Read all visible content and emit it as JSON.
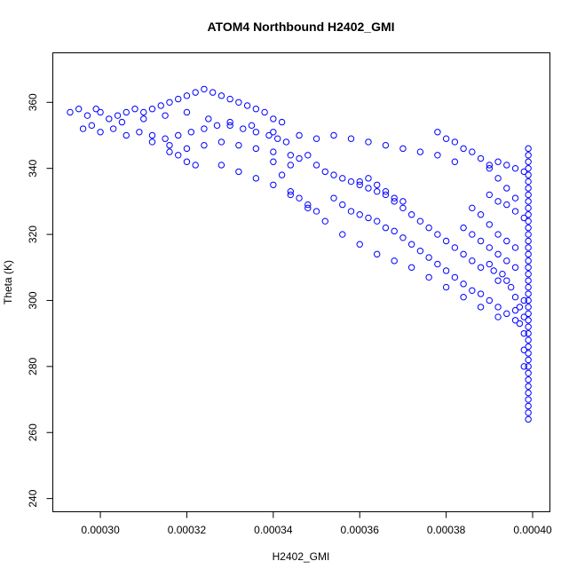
{
  "chart_data": {
    "type": "scatter",
    "title": "ATOM4 Northbound H2402_GMI",
    "xlabel": "H2402_GMI",
    "ylabel": "Theta (K)",
    "xlim": [
      0.000289,
      0.000404
    ],
    "ylim": [
      236,
      375
    ],
    "x_ticks": [
      0.0003,
      0.00032,
      0.00034,
      0.00036,
      0.00038,
      0.0004
    ],
    "x_tick_labels": [
      "0.00030",
      "0.00032",
      "0.00034",
      "0.00036",
      "0.00038",
      "0.00040"
    ],
    "y_ticks": [
      240,
      260,
      280,
      300,
      320,
      340,
      360
    ],
    "y_tick_labels": [
      "240",
      "260",
      "280",
      "300",
      "320",
      "340",
      "360"
    ],
    "grid": false,
    "legend": "none",
    "marker": "open-circle",
    "color": "#0000ff",
    "series": [
      {
        "points": [
          [
            0.000293,
            357
          ],
          [
            0.000295,
            358
          ],
          [
            0.000297,
            356
          ],
          [
            0.000299,
            358
          ],
          [
            0.0003,
            357
          ],
          [
            0.000302,
            355
          ],
          [
            0.000304,
            356
          ],
          [
            0.000306,
            357
          ],
          [
            0.000308,
            358
          ],
          [
            0.00031,
            357
          ],
          [
            0.000312,
            358
          ],
          [
            0.000314,
            359
          ],
          [
            0.000316,
            360
          ],
          [
            0.000318,
            361
          ],
          [
            0.00032,
            362
          ],
          [
            0.000322,
            363
          ],
          [
            0.000324,
            364
          ],
          [
            0.000326,
            363
          ],
          [
            0.000328,
            362
          ],
          [
            0.00033,
            361
          ],
          [
            0.000332,
            360
          ],
          [
            0.000334,
            359
          ],
          [
            0.000336,
            358
          ],
          [
            0.000338,
            357
          ],
          [
            0.00034,
            355
          ],
          [
            0.000342,
            354
          ],
          [
            0.000296,
            352
          ],
          [
            0.000298,
            353
          ],
          [
            0.0003,
            351
          ],
          [
            0.000303,
            352
          ],
          [
            0.000306,
            350
          ],
          [
            0.000309,
            351
          ],
          [
            0.000312,
            350
          ],
          [
            0.000315,
            349
          ],
          [
            0.000318,
            350
          ],
          [
            0.000321,
            351
          ],
          [
            0.000324,
            352
          ],
          [
            0.000327,
            353
          ],
          [
            0.00033,
            353
          ],
          [
            0.000333,
            352
          ],
          [
            0.000336,
            351
          ],
          [
            0.000339,
            350
          ],
          [
            0.000341,
            349
          ],
          [
            0.000343,
            348
          ],
          [
            0.000305,
            354
          ],
          [
            0.00031,
            355
          ],
          [
            0.000315,
            356
          ],
          [
            0.00032,
            357
          ],
          [
            0.000325,
            355
          ],
          [
            0.00033,
            354
          ],
          [
            0.000335,
            353
          ],
          [
            0.00034,
            351
          ],
          [
            0.000312,
            348
          ],
          [
            0.000316,
            347
          ],
          [
            0.00032,
            346
          ],
          [
            0.000324,
            347
          ],
          [
            0.000328,
            348
          ],
          [
            0.000332,
            347
          ],
          [
            0.000336,
            346
          ],
          [
            0.00034,
            345
          ],
          [
            0.000344,
            344
          ],
          [
            0.000318,
            344
          ],
          [
            0.00032,
            342
          ],
          [
            0.000322,
            341
          ],
          [
            0.000316,
            345
          ],
          [
            0.000342,
            338
          ],
          [
            0.000344,
            341
          ],
          [
            0.000346,
            343
          ],
          [
            0.000348,
            344
          ],
          [
            0.00035,
            341
          ],
          [
            0.000352,
            339
          ],
          [
            0.000354,
            338
          ],
          [
            0.000356,
            337
          ],
          [
            0.000358,
            336
          ],
          [
            0.00036,
            335
          ],
          [
            0.000362,
            334
          ],
          [
            0.000364,
            333
          ],
          [
            0.000366,
            332
          ],
          [
            0.000368,
            331
          ],
          [
            0.00037,
            330
          ],
          [
            0.000346,
            350
          ],
          [
            0.00035,
            349
          ],
          [
            0.000354,
            350
          ],
          [
            0.000358,
            349
          ],
          [
            0.000362,
            348
          ],
          [
            0.000366,
            347
          ],
          [
            0.00037,
            346
          ],
          [
            0.000374,
            345
          ],
          [
            0.000378,
            344
          ],
          [
            0.000382,
            342
          ],
          [
            0.00034,
            342
          ],
          [
            0.000344,
            333
          ],
          [
            0.000346,
            331
          ],
          [
            0.000348,
            329
          ],
          [
            0.00035,
            327
          ],
          [
            0.000354,
            331
          ],
          [
            0.000356,
            329
          ],
          [
            0.000358,
            327
          ],
          [
            0.00036,
            326
          ],
          [
            0.000362,
            325
          ],
          [
            0.000364,
            324
          ],
          [
            0.000366,
            322
          ],
          [
            0.000368,
            321
          ],
          [
            0.00037,
            319
          ],
          [
            0.000372,
            317
          ],
          [
            0.000374,
            315
          ],
          [
            0.000376,
            313
          ],
          [
            0.000378,
            311
          ],
          [
            0.00038,
            309
          ],
          [
            0.000382,
            307
          ],
          [
            0.000328,
            341
          ],
          [
            0.000332,
            339
          ],
          [
            0.000336,
            337
          ],
          [
            0.00034,
            335
          ],
          [
            0.000344,
            332
          ],
          [
            0.000348,
            328
          ],
          [
            0.000352,
            324
          ],
          [
            0.000356,
            320
          ],
          [
            0.00036,
            317
          ],
          [
            0.000364,
            314
          ],
          [
            0.000368,
            312
          ],
          [
            0.000372,
            310
          ],
          [
            0.000376,
            307
          ],
          [
            0.00038,
            304
          ],
          [
            0.000384,
            301
          ],
          [
            0.000388,
            298
          ],
          [
            0.000392,
            295
          ],
          [
            0.00036,
            336
          ],
          [
            0.000362,
            337
          ],
          [
            0.000364,
            335
          ],
          [
            0.000366,
            333
          ],
          [
            0.000368,
            330
          ],
          [
            0.00037,
            328
          ],
          [
            0.000372,
            326
          ],
          [
            0.000374,
            324
          ],
          [
            0.000376,
            322
          ],
          [
            0.000378,
            320
          ],
          [
            0.00038,
            318
          ],
          [
            0.000382,
            316
          ],
          [
            0.000384,
            314
          ],
          [
            0.000386,
            312
          ],
          [
            0.000388,
            310
          ],
          [
            0.000378,
            351
          ],
          [
            0.00038,
            349
          ],
          [
            0.000382,
            348
          ],
          [
            0.000384,
            346
          ],
          [
            0.000386,
            345
          ],
          [
            0.000388,
            343
          ],
          [
            0.00039,
            340
          ],
          [
            0.000392,
            337
          ],
          [
            0.000394,
            334
          ],
          [
            0.000396,
            331
          ],
          [
            0.000386,
            328
          ],
          [
            0.000388,
            326
          ],
          [
            0.00039,
            323
          ],
          [
            0.000392,
            320
          ],
          [
            0.000394,
            318
          ],
          [
            0.000396,
            316
          ],
          [
            0.000384,
            322
          ],
          [
            0.000386,
            320
          ],
          [
            0.000388,
            318
          ],
          [
            0.00039,
            316
          ],
          [
            0.000392,
            314
          ],
          [
            0.000394,
            312
          ],
          [
            0.000396,
            310
          ],
          [
            0.000384,
            305
          ],
          [
            0.000386,
            303
          ],
          [
            0.000388,
            302
          ],
          [
            0.00039,
            300
          ],
          [
            0.000392,
            298
          ],
          [
            0.000394,
            296
          ],
          [
            0.000396,
            294
          ],
          [
            0.00039,
            341
          ],
          [
            0.000392,
            342
          ],
          [
            0.000394,
            341
          ],
          [
            0.000396,
            340
          ],
          [
            0.000398,
            339
          ],
          [
            0.00039,
            332
          ],
          [
            0.000392,
            330
          ],
          [
            0.000394,
            329
          ],
          [
            0.000396,
            327
          ],
          [
            0.000398,
            325
          ],
          [
            0.000399,
            346
          ],
          [
            0.000399,
            344
          ],
          [
            0.000399,
            342
          ],
          [
            0.000399,
            340
          ],
          [
            0.000399,
            338
          ],
          [
            0.000399,
            336
          ],
          [
            0.000399,
            334
          ],
          [
            0.000399,
            332
          ],
          [
            0.000399,
            330
          ],
          [
            0.000399,
            328
          ],
          [
            0.000399,
            326
          ],
          [
            0.000399,
            324
          ],
          [
            0.000399,
            322
          ],
          [
            0.000399,
            320
          ],
          [
            0.000399,
            318
          ],
          [
            0.000399,
            316
          ],
          [
            0.000399,
            314
          ],
          [
            0.000399,
            312
          ],
          [
            0.000399,
            310
          ],
          [
            0.000399,
            308
          ],
          [
            0.000399,
            306
          ],
          [
            0.000399,
            304
          ],
          [
            0.000399,
            302
          ],
          [
            0.000399,
            300
          ],
          [
            0.000399,
            298
          ],
          [
            0.000399,
            296
          ],
          [
            0.000399,
            294
          ],
          [
            0.000399,
            292
          ],
          [
            0.000399,
            290
          ],
          [
            0.000399,
            288
          ],
          [
            0.000399,
            286
          ],
          [
            0.000399,
            284
          ],
          [
            0.000399,
            282
          ],
          [
            0.000399,
            280
          ],
          [
            0.000399,
            278
          ],
          [
            0.000399,
            276
          ],
          [
            0.000399,
            274
          ],
          [
            0.000399,
            272
          ],
          [
            0.000399,
            270
          ],
          [
            0.000399,
            268
          ],
          [
            0.000399,
            266
          ],
          [
            0.000399,
            264
          ],
          [
            0.000398,
            300
          ],
          [
            0.000398,
            295
          ],
          [
            0.000398,
            290
          ],
          [
            0.000398,
            285
          ],
          [
            0.000398,
            280
          ],
          [
            0.000397,
            298
          ],
          [
            0.000397,
            293
          ],
          [
            0.000396,
            301
          ],
          [
            0.000396,
            297
          ],
          [
            0.000395,
            304
          ],
          [
            0.000394,
            306
          ],
          [
            0.000393,
            308
          ],
          [
            0.000392,
            306
          ],
          [
            0.000391,
            309
          ],
          [
            0.00039,
            311
          ]
        ]
      }
    ]
  }
}
